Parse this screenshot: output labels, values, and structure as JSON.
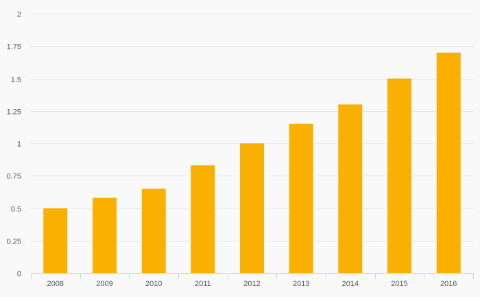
{
  "chart_data": {
    "type": "bar",
    "title": "",
    "xlabel": "",
    "ylabel": "",
    "categories": [
      "2008",
      "2009",
      "2010",
      "2011",
      "2012",
      "2013",
      "2014",
      "2015",
      "2016"
    ],
    "values": [
      0.5,
      0.58,
      0.65,
      0.83,
      1.0,
      1.15,
      1.3,
      1.5,
      1.7
    ],
    "ylim": [
      0,
      2
    ],
    "yticks": [
      0,
      0.25,
      0.5,
      0.75,
      1,
      1.25,
      1.5,
      1.75,
      2
    ],
    "ytick_labels": [
      "0",
      "0.25",
      "0.5",
      "0.75",
      "1",
      "1.25",
      "1.5",
      "1.75",
      "2"
    ],
    "grid": true,
    "legend": "none",
    "colors": {
      "bar": "#f9b000",
      "grid": "#e6e6e6",
      "axis": "#ccd6eb",
      "background": "#f9f9f9"
    }
  }
}
